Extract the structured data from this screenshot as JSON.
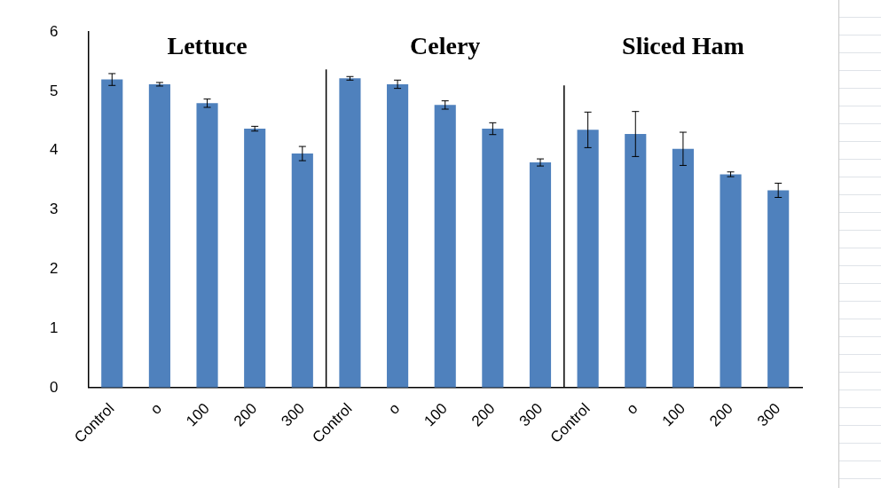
{
  "chart_data": [
    {
      "type": "bar",
      "title": "Lettuce",
      "categories": [
        "Control",
        "o",
        "100",
        "200",
        "300"
      ],
      "values": [
        5.2,
        5.12,
        4.8,
        4.37,
        3.95
      ],
      "errors": [
        0.1,
        0.03,
        0.07,
        0.04,
        0.12
      ],
      "color": "#4f81bd",
      "ylim": [
        0,
        6
      ],
      "yticks": [
        0,
        1,
        2,
        3,
        4,
        5,
        6
      ],
      "grid": false
    },
    {
      "type": "bar",
      "title": "Celery",
      "categories": [
        "Control",
        "o",
        "100",
        "200",
        "300"
      ],
      "values": [
        5.22,
        5.12,
        4.77,
        4.37,
        3.8
      ],
      "errors": [
        0.03,
        0.07,
        0.07,
        0.1,
        0.06
      ],
      "color": "#4f81bd",
      "ylim": [
        0,
        6
      ],
      "yticks": [
        0,
        1,
        2,
        3,
        4,
        5,
        6
      ],
      "grid": false
    },
    {
      "type": "bar",
      "title": "Sliced Ham",
      "categories": [
        "Control",
        "o",
        "100",
        "200",
        "300"
      ],
      "values": [
        4.35,
        4.28,
        4.03,
        3.6,
        3.33
      ],
      "errors": [
        0.3,
        0.38,
        0.28,
        0.04,
        0.12
      ],
      "color": "#4f81bd",
      "ylim": [
        0,
        6
      ],
      "yticks": [
        0,
        1,
        2,
        3,
        4,
        5,
        6
      ],
      "grid": false
    }
  ]
}
